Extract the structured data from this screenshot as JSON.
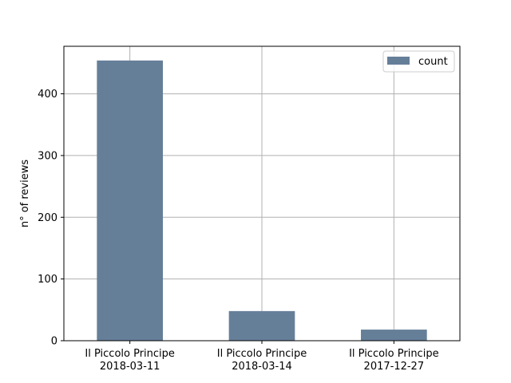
{
  "chart_data": {
    "type": "bar",
    "categories": [
      [
        "Il Piccolo Principe",
        "2018-03-11"
      ],
      [
        "Il Piccolo Principe",
        "2018-03-14"
      ],
      [
        "Il Piccolo Principe",
        "2017-12-27"
      ]
    ],
    "series": [
      {
        "name": "count",
        "values": [
          454,
          48,
          18
        ]
      }
    ],
    "xlabel": "",
    "ylabel": "n° of reviews",
    "ylim": [
      0,
      477
    ],
    "yticks": [
      0,
      100,
      200,
      300,
      400
    ],
    "grid": true,
    "legend_position": "top-right",
    "colors": {
      "bar": "#667f99",
      "grid": "#b0b0b0",
      "axis": "#000000"
    }
  }
}
